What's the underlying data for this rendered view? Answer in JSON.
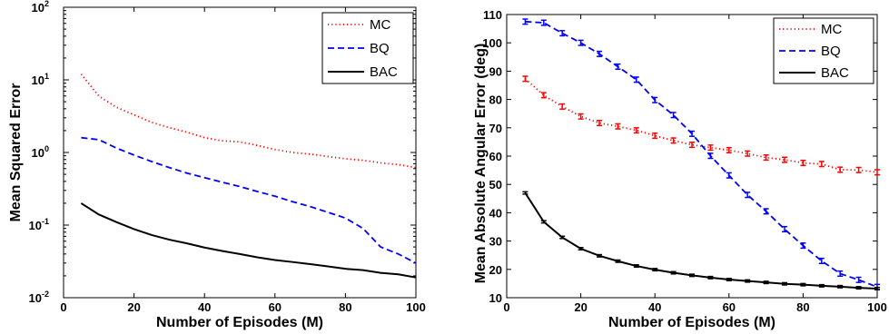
{
  "chart_data": [
    {
      "type": "line",
      "xlabel": "Number of Episodes (M)",
      "ylabel": "Mean Squared Error",
      "xlim": [
        0,
        100
      ],
      "ylim": [
        0.01,
        100
      ],
      "yscale": "log",
      "xticks": [
        "0",
        "20",
        "40",
        "60",
        "80",
        "100"
      ],
      "yticks": [
        {
          "base": "10",
          "exp": "-2",
          "value": 0.01
        },
        {
          "base": "10",
          "exp": "-1",
          "value": 0.1
        },
        {
          "base": "10",
          "exp": "0",
          "value": 1
        },
        {
          "base": "10",
          "exp": "1",
          "value": 10
        },
        {
          "base": "10",
          "exp": "2",
          "value": 100
        }
      ],
      "legend_position": "top-right",
      "grid": false,
      "series": [
        {
          "name": "MC",
          "color": "#ff0000",
          "style": "dotted",
          "x": [
            5,
            10,
            15,
            20,
            25,
            30,
            35,
            40,
            45,
            50,
            55,
            60,
            65,
            70,
            75,
            80,
            85,
            90,
            95,
            100
          ],
          "y": [
            12,
            6,
            4.2,
            3.3,
            2.6,
            2.2,
            1.9,
            1.6,
            1.45,
            1.4,
            1.25,
            1.1,
            1.0,
            0.95,
            0.88,
            0.82,
            0.78,
            0.72,
            0.68,
            0.62
          ]
        },
        {
          "name": "BQ",
          "color": "#0000ff",
          "style": "dashed",
          "x": [
            5,
            10,
            15,
            20,
            25,
            30,
            35,
            40,
            45,
            50,
            55,
            60,
            65,
            70,
            75,
            80,
            85,
            90,
            95,
            100
          ],
          "y": [
            1.6,
            1.5,
            1.15,
            0.92,
            0.75,
            0.62,
            0.52,
            0.45,
            0.39,
            0.34,
            0.29,
            0.25,
            0.21,
            0.18,
            0.15,
            0.125,
            0.09,
            0.05,
            0.04,
            0.03
          ]
        },
        {
          "name": "BAC",
          "color": "#000000",
          "style": "solid",
          "x": [
            5,
            10,
            15,
            20,
            25,
            30,
            35,
            40,
            45,
            50,
            55,
            60,
            65,
            70,
            75,
            80,
            85,
            90,
            95,
            100
          ],
          "y": [
            0.2,
            0.14,
            0.11,
            0.088,
            0.073,
            0.063,
            0.056,
            0.049,
            0.044,
            0.04,
            0.036,
            0.033,
            0.031,
            0.029,
            0.027,
            0.025,
            0.024,
            0.022,
            0.021,
            0.019
          ]
        }
      ]
    },
    {
      "type": "line",
      "xlabel": "Number of Episodes (M)",
      "ylabel": "Mean Absolute Angular Error (deg)",
      "xlim": [
        0,
        100
      ],
      "ylim": [
        10,
        110
      ],
      "yscale": "linear",
      "xticks": [
        "0",
        "20",
        "40",
        "60",
        "80",
        "100"
      ],
      "yticks": [
        "10",
        "20",
        "30",
        "40",
        "50",
        "60",
        "70",
        "80",
        "90",
        "100",
        "110"
      ],
      "legend_position": "top-right",
      "grid": false,
      "error_bars": true,
      "series": [
        {
          "name": "MC",
          "color": "#ff0000",
          "style": "dotted",
          "x": [
            5,
            10,
            15,
            20,
            25,
            30,
            35,
            40,
            45,
            50,
            55,
            60,
            65,
            70,
            75,
            80,
            85,
            90,
            95,
            100
          ],
          "y": [
            87.3,
            81.5,
            77.5,
            74.0,
            71.7,
            70.5,
            69.1,
            67.2,
            65.5,
            64.0,
            63.0,
            62.1,
            60.9,
            59.5,
            58.7,
            57.6,
            57.2,
            55.2,
            55.1,
            54.3
          ],
          "err": 0.9
        },
        {
          "name": "BQ",
          "color": "#0000ff",
          "style": "dashed",
          "x": [
            5,
            10,
            15,
            20,
            25,
            30,
            35,
            40,
            45,
            50,
            55,
            60,
            65,
            70,
            75,
            80,
            85,
            90,
            95,
            100
          ],
          "y": [
            107.5,
            107.1,
            103.4,
            100.0,
            96.1,
            91.6,
            87.0,
            79.8,
            74.5,
            67.9,
            60.1,
            53.2,
            46.3,
            40.5,
            34.2,
            28.4,
            23.0,
            18.5,
            16.3,
            13.8
          ],
          "err": 0.9
        },
        {
          "name": "BAC",
          "color": "#000000",
          "style": "solid",
          "x": [
            5,
            10,
            15,
            20,
            25,
            30,
            35,
            40,
            45,
            50,
            55,
            60,
            65,
            70,
            75,
            80,
            85,
            90,
            95,
            100
          ],
          "y": [
            47.0,
            36.8,
            31.3,
            27.3,
            24.8,
            22.9,
            21.2,
            19.9,
            18.8,
            17.9,
            17.1,
            16.4,
            15.9,
            15.4,
            14.9,
            14.6,
            14.2,
            13.9,
            13.5,
            13.2
          ],
          "err": 0.4
        }
      ]
    }
  ]
}
